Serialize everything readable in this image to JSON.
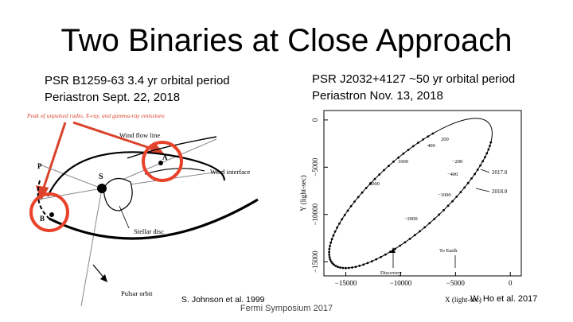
{
  "slide": {
    "title": "Two Binaries at Close Approach",
    "left": {
      "line1": "PSR B1259-63   3.4 yr orbital period",
      "line2": "Periastron Sept. 22, 2018",
      "credit": "S. Johnson et al. 1999"
    },
    "right": {
      "line1": "PSR J2032+4127  ~50 yr orbital period",
      "line2": "Periastron Nov. 13, 2018",
      "credit": "W. Ho et al. 2017"
    },
    "footer": "Fermi Symposium 2017"
  },
  "left_figure": {
    "annotation": "Peak of unpulsed radio, X-ray, and gamma-ray emissions",
    "wind_flow_label": "Wind flow line",
    "wind_interface_label": "Wind interface",
    "stellar_disc_label": "Stellar disc",
    "pulsar_orbit_label": "Pulsar orbit",
    "point_p": "P",
    "point_a": "A",
    "point_s": "S",
    "point_b": "B",
    "highlight_color": "#e8432a",
    "arrow_color": "#d9432c"
  },
  "chart_data": {
    "type": "scatter",
    "xlabel": "X (light-sec)",
    "ylabel": "Y (light-sec)",
    "x_ticks": [
      "−15000",
      "−10000",
      "−5000",
      "0"
    ],
    "y_ticks": [
      "0",
      "−5000",
      "−10000",
      "−15000"
    ],
    "xlim": [
      -17000,
      1000
    ],
    "ylim": [
      -16500,
      1000
    ],
    "grid": false,
    "epoch_labels": [
      "200",
      "400",
      "1000",
      "2000",
      "−200",
      "−400",
      "−1000",
      "−2000"
    ],
    "date_labels": [
      "2017.0",
      "2018.0"
    ],
    "annotations": [
      "To Earth",
      "Discovery"
    ]
  }
}
